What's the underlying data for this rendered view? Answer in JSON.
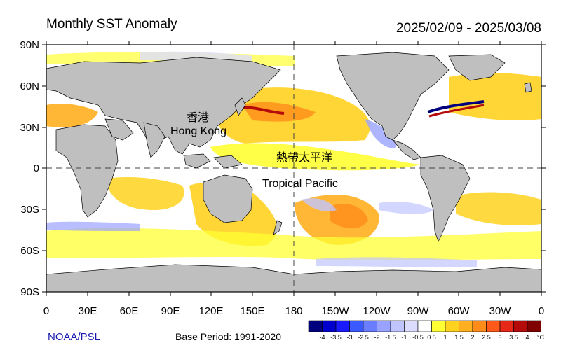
{
  "header": {
    "title": "Monthly SST Anomaly",
    "period": "2025/02/09 - 2025/03/08"
  },
  "axes": {
    "lat_labels": [
      "90N",
      "60N",
      "30N",
      "0",
      "30S",
      "60S",
      "90S"
    ],
    "lon_labels": [
      "0",
      "30E",
      "60E",
      "90E",
      "120E",
      "150E",
      "180",
      "150W",
      "120W",
      "90W",
      "60W",
      "30W",
      "0"
    ]
  },
  "annotations": {
    "hk_cn": "香港",
    "hk_en": "Hong Kong",
    "tp_cn": "熱帶太平洋",
    "tp_en": "Tropical Pacific"
  },
  "footer": {
    "source": "NOAA/PSL",
    "base_period": "Base Period: 1991-2020"
  },
  "colorbar": {
    "unit": "°C",
    "ticks": [
      "-4",
      "-3.5",
      "-3",
      "-2.5",
      "-2",
      "-1.5",
      "-1",
      "-0.5",
      "0.5",
      "1",
      "1.5",
      "2",
      "2.5",
      "3",
      "3.5",
      "4"
    ],
    "colors": [
      "#00007f",
      "#0000cc",
      "#1a1aff",
      "#3a5aff",
      "#6a7dff",
      "#9aa2ff",
      "#c0c4ff",
      "#dcdcff",
      "#ffffff",
      "#ffff33",
      "#ffd21f",
      "#ffaf1f",
      "#ff8c1a",
      "#ff5a1a",
      "#e62818",
      "#b40a0a",
      "#800000"
    ]
  }
}
